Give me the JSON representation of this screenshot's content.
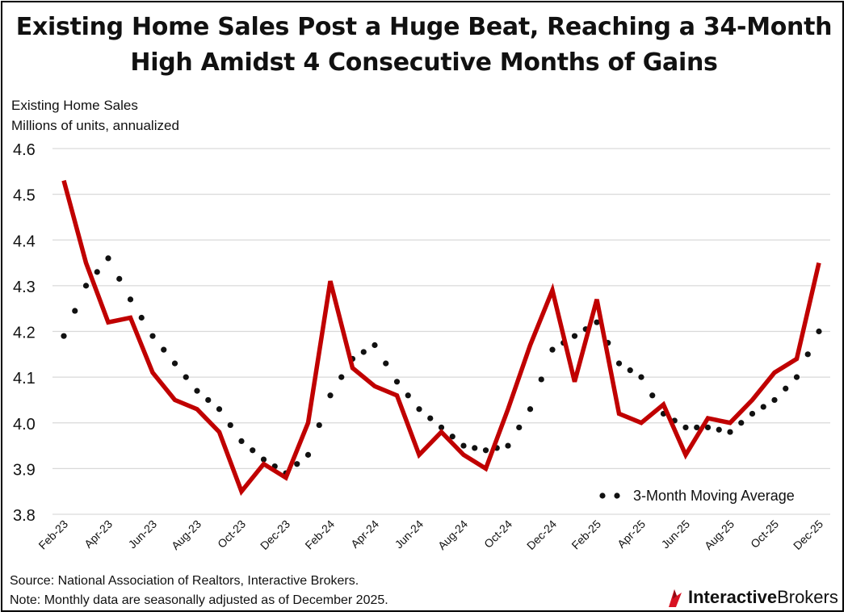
{
  "title_line1": "Existing Home Sales Post a Huge Beat, Reaching a 34-Month",
  "title_line2": "High Amidst 4 Consecutive Months of Gains",
  "chart_data": {
    "type": "line",
    "title": "Existing Home Sales Post a Huge Beat, Reaching a 34-Month High Amidst 4 Consecutive Months of Gains",
    "ylabel": "Existing Home Sales",
    "ylabel2": "Millions of units, annualized",
    "xlabel": "",
    "ylim": [
      3.8,
      4.6
    ],
    "yticks": [
      "3.8",
      "3.9",
      "4.0",
      "4.1",
      "4.2",
      "4.3",
      "4.4",
      "4.5",
      "4.6"
    ],
    "grid": true,
    "legend_position": "bottom-right",
    "categories": [
      "Feb-23",
      "Mar-23",
      "Apr-23",
      "May-23",
      "Jun-23",
      "Jul-23",
      "Aug-23",
      "Sep-23",
      "Oct-23",
      "Nov-23",
      "Dec-23",
      "Jan-24",
      "Feb-24",
      "Mar-24",
      "Apr-24",
      "May-24",
      "Jun-24",
      "Jul-24",
      "Aug-24",
      "Sep-24",
      "Oct-24",
      "Nov-24",
      "Dec-24",
      "Jan-25",
      "Feb-25",
      "Mar-25",
      "Apr-25",
      "May-25",
      "Jun-25",
      "Jul-25",
      "Aug-25",
      "Sep-25",
      "Oct-25",
      "Nov-25",
      "Dec-25"
    ],
    "tick_labels": [
      "Feb-23",
      "Apr-23",
      "Jun-23",
      "Aug-23",
      "Oct-23",
      "Dec-23",
      "Feb-24",
      "Apr-24",
      "Jun-24",
      "Aug-24",
      "Oct-24",
      "Dec-24",
      "Feb-25",
      "Apr-25",
      "Jun-25",
      "Aug-25",
      "Oct-25",
      "Dec-25"
    ],
    "series": [
      {
        "name": "Existing Home Sales",
        "style": "solid",
        "color": "#C00000",
        "values": [
          4.53,
          4.35,
          4.22,
          4.23,
          4.11,
          4.05,
          4.03,
          3.98,
          3.85,
          3.91,
          3.88,
          4.0,
          4.31,
          4.12,
          4.08,
          4.06,
          3.93,
          3.98,
          3.93,
          3.9,
          4.03,
          4.17,
          4.29,
          4.09,
          4.27,
          4.02,
          4.0,
          4.04,
          3.93,
          4.01,
          4.0,
          4.05,
          4.11,
          4.14,
          4.35
        ]
      },
      {
        "name": "3-Month Moving Average",
        "style": "dotted",
        "color": "#111111",
        "values": [
          4.19,
          4.3,
          4.36,
          4.27,
          4.19,
          4.13,
          4.07,
          4.03,
          3.96,
          3.92,
          3.89,
          3.93,
          4.06,
          4.14,
          4.17,
          4.09,
          4.03,
          3.99,
          3.95,
          3.94,
          3.95,
          4.03,
          4.16,
          4.19,
          4.22,
          4.13,
          4.1,
          4.02,
          3.99,
          3.99,
          3.98,
          4.02,
          4.05,
          4.1,
          4.2
        ]
      }
    ]
  },
  "legend_label": "3-Month Moving Average",
  "footer": {
    "source": "Source: National Association of Realtors, Interactive Brokers.",
    "note": "Note: Monthly data are seasonally adjusted as of December 2025."
  },
  "brand": {
    "part1": "Interactive",
    "part2": "Brokers"
  },
  "colors": {
    "series_line": "#C00000",
    "moving_average": "#111111",
    "grid": "#D9D9D9",
    "brand_red": "#D81222"
  }
}
